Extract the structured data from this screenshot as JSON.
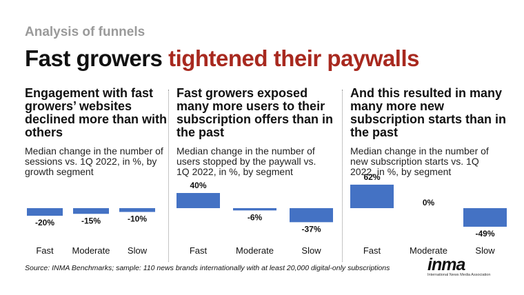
{
  "kicker": "Analysis of funnels",
  "headline": {
    "part1": "Fast growers ",
    "part2": "tightened their paywalls"
  },
  "colors": {
    "bar": "#4472c4",
    "accent": "#a8291f"
  },
  "panels": [
    {
      "title": "Engagement with fast growers’ websites declined more than with others",
      "subtitle": "Median change in the number of sessions vs. 1Q 2022, in %, by growth segment"
    },
    {
      "title": "Fast growers exposed many more users to their subscription offers than in the past",
      "subtitle": "Median change in the number of users stopped by the paywall vs. 1Q 2022, in %, by segment"
    },
    {
      "title": "And this resulted in many  many more new subscription starts than in the past",
      "subtitle": "Median change in the number of new subscription starts vs. 1Q 2022, in %, by segment"
    }
  ],
  "chart_data": [
    {
      "type": "bar",
      "categories": [
        "Fast",
        "Moderate",
        "Slow"
      ],
      "values": [
        -20,
        -15,
        -10
      ],
      "labels": [
        "-20%",
        "-15%",
        "-10%"
      ]
    },
    {
      "type": "bar",
      "categories": [
        "Fast",
        "Moderate",
        "Slow"
      ],
      "values": [
        40,
        -6,
        -37
      ],
      "labels": [
        "40%",
        "-6%",
        "-37%"
      ]
    },
    {
      "type": "bar",
      "categories": [
        "Fast",
        "Moderate",
        "Slow"
      ],
      "values": [
        62,
        0,
        -49
      ],
      "labels": [
        "62%",
        "0%",
        "-49%"
      ]
    }
  ],
  "source": "Source: INMA Benchmarks; sample: 110 news brands internationally with at least 20,000 digital-only subscriptions",
  "logo": {
    "word": "inma",
    "tagline": "International News Media Association"
  }
}
